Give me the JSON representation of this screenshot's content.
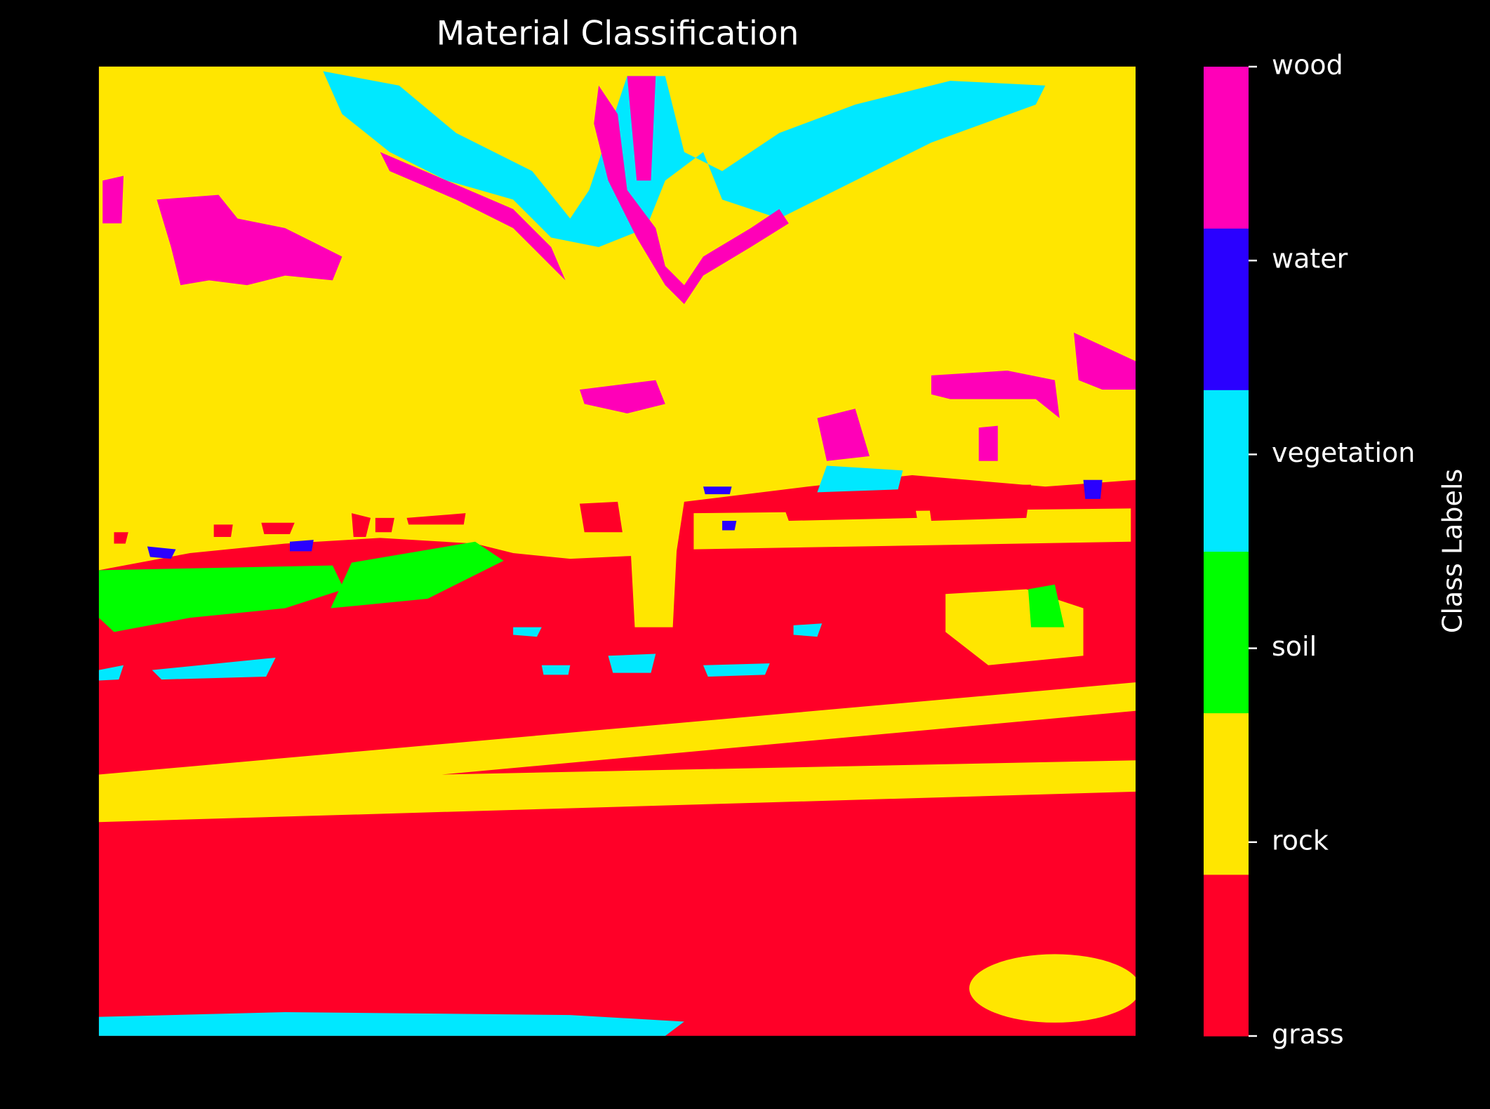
{
  "chart_data": {
    "type": "segmentation_map",
    "title": "Material Classification",
    "colorbar_label": "Class Labels",
    "classes": [
      {
        "name": "grass",
        "color": "#ff0028"
      },
      {
        "name": "rock",
        "color": "#ffe600"
      },
      {
        "name": "soil",
        "color": "#00ff00"
      },
      {
        "name": "vegetation",
        "color": "#00e8ff"
      },
      {
        "name": "water",
        "color": "#2a00ff"
      },
      {
        "name": "wood",
        "color": "#ff00b8"
      }
    ]
  }
}
